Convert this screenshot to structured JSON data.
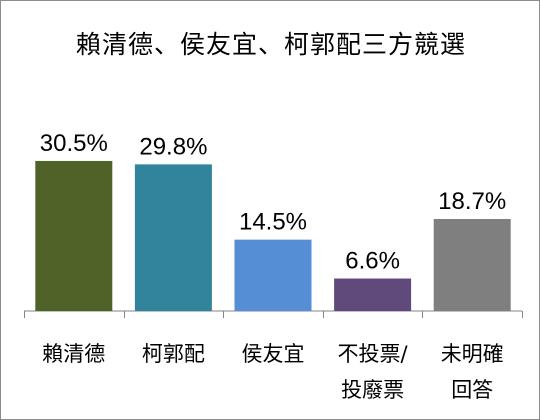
{
  "chart_data": {
    "type": "bar",
    "title": "賴清德、侯友宜、柯郭配三方競選",
    "categories": [
      "賴清德",
      "柯郭配",
      "侯友宜",
      "不投票/\n投廢票",
      "未明確\n回答"
    ],
    "values": [
      30.5,
      29.8,
      14.5,
      6.6,
      18.7
    ],
    "value_labels": [
      "30.5%",
      "29.8%",
      "14.5%",
      "6.6%",
      "18.7%"
    ],
    "colors": [
      "#4f6228",
      "#31849b",
      "#558ed5",
      "#604a7b",
      "#7f7f7f"
    ],
    "ylim": [
      0,
      35
    ],
    "grid": false,
    "legend": "none"
  }
}
